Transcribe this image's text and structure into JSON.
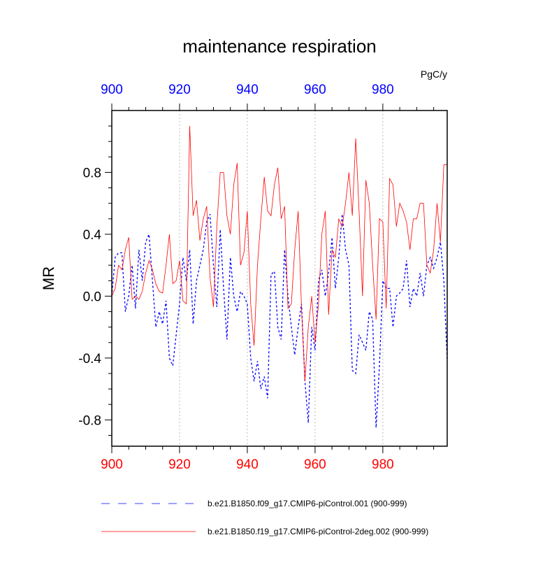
{
  "chart_data": {
    "type": "line",
    "title": "maintenance respiration",
    "units": "PgC/y",
    "ylabel": "MR",
    "xlabel": "",
    "xlim": [
      900,
      999
    ],
    "ylim": [
      -0.97,
      1.2
    ],
    "x_ticks": [
      900,
      920,
      940,
      960,
      980
    ],
    "y_ticks": [
      0.8,
      0.4,
      0.0,
      -0.4,
      -0.8
    ],
    "y_tick_labels": [
      "0.8",
      "0.4",
      "0.0",
      "-0.4",
      "-0.8"
    ],
    "grid": "vertical dotted at major x ticks",
    "top_axis_color": "#0000ff",
    "bottom_axis_color": "#ff0000",
    "legend_placement": "bottom",
    "x_start": 900,
    "series": [
      {
        "name": "b.e21.B1850.f09_g17.CMIP6-piControl.001 (900-999)",
        "color": "#0000ff",
        "style": "dashed",
        "values": [
          0.0,
          0.25,
          0.28,
          0.28,
          -0.1,
          0.0,
          0.2,
          -0.08,
          0.3,
          0.1,
          0.35,
          0.4,
          0.1,
          -0.2,
          -0.1,
          -0.18,
          -0.03,
          -0.4,
          -0.45,
          -0.25,
          -0.05,
          0.25,
          0.1,
          0.3,
          -0.18,
          0.1,
          0.2,
          0.3,
          0.48,
          0.53,
          0.2,
          -0.07,
          0.43,
          0.05,
          -0.28,
          0.25,
          0.0,
          -0.1,
          0.03,
          0.0,
          -0.05,
          -0.4,
          -0.55,
          -0.42,
          -0.6,
          -0.52,
          -0.66,
          0.14,
          0.16,
          -0.2,
          -0.28,
          0.3,
          0.0,
          -0.2,
          -0.38,
          -0.2,
          -0.05,
          -0.55,
          -0.82,
          -0.2,
          -0.35,
          0.1,
          0.17,
          0.0,
          0.15,
          0.38,
          0.05,
          0.25,
          0.53,
          0.3,
          0.2,
          -0.48,
          -0.5,
          -0.25,
          -0.3,
          -0.35,
          -0.1,
          -0.15,
          -0.85,
          -0.45,
          0.1,
          0.05,
          0.05,
          -0.2,
          0.0,
          0.02,
          0.05,
          0.23,
          -0.07,
          0.05,
          0.0,
          0.15,
          0.0,
          0.2,
          0.25,
          0.18,
          0.25,
          0.35,
          0.1,
          -0.42
        ]
      },
      {
        "name": "b.e21.B1850.f19_g17.CMIP6-piControl-2deg.002 (900-999)",
        "color": "#ff0000",
        "style": "solid",
        "values": [
          0.0,
          0.05,
          0.2,
          0.17,
          0.3,
          0.38,
          -0.02,
          0.0,
          -0.02,
          0.03,
          0.15,
          0.23,
          0.17,
          0.08,
          0.03,
          0.02,
          0.2,
          0.4,
          0.08,
          0.1,
          0.23,
          -0.03,
          -0.05,
          1.1,
          0.52,
          0.62,
          0.36,
          0.5,
          0.58,
          0.12,
          -0.07,
          0.45,
          0.8,
          0.8,
          0.52,
          0.4,
          0.72,
          0.86,
          0.2,
          0.28,
          0.55,
          -0.05,
          -0.32,
          0.2,
          0.5,
          0.77,
          0.55,
          0.52,
          0.72,
          0.83,
          0.5,
          0.58,
          -0.08,
          -0.05,
          0.3,
          0.55,
          -0.08,
          -0.55,
          -0.2,
          0.0,
          -0.3,
          -0.05,
          0.4,
          0.55,
          -0.12,
          0.3,
          0.25,
          0.5,
          0.45,
          0.6,
          0.8,
          0.52,
          1.02,
          0.55,
          0.0,
          0.75,
          0.6,
          0.2,
          -0.15,
          0.5,
          0.48,
          -0.08,
          0.76,
          0.72,
          0.45,
          0.6,
          0.55,
          0.48,
          0.3,
          0.5,
          0.5,
          0.6,
          0.6,
          0.2,
          0.15,
          0.3,
          0.6,
          0.35,
          0.85,
          0.85
        ]
      }
    ]
  }
}
